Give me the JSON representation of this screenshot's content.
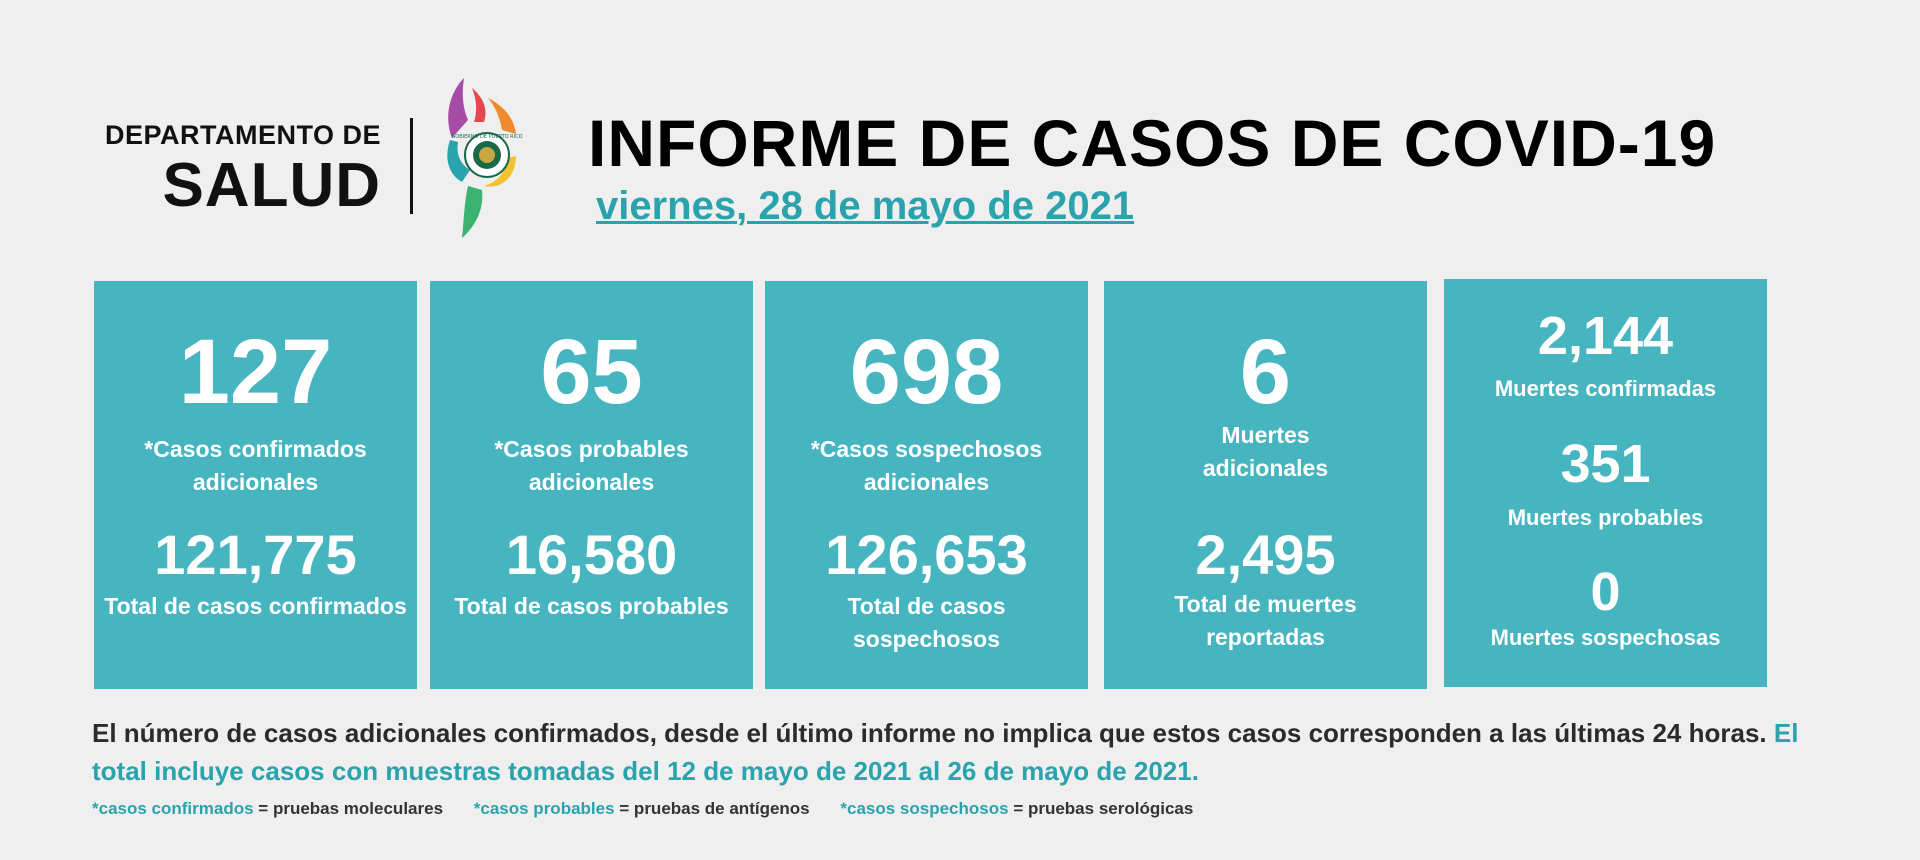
{
  "header": {
    "dept_line1": "DEPARTAMENTO DE",
    "dept_line2": "SALUD",
    "logo_icon": "puerto-rico-government-seal-logo",
    "logo_text": "GOBIERNO DE PUERTO RICO",
    "title": "INFORME DE CASOS DE COVID-19",
    "date": "viernes, 28 de mayo de 2021"
  },
  "colors": {
    "card": "#46b5c0",
    "accent": "#2aa3ad",
    "background": "#efefef"
  },
  "cards": [
    {
      "value": "127",
      "label": "*Casos confirmados adicionales",
      "total": "121,775",
      "total_label": "Total de casos confirmados"
    },
    {
      "value": "65",
      "label": "*Casos probables adicionales",
      "total": "16,580",
      "total_label": "Total de casos probables"
    },
    {
      "value": "698",
      "label": "*Casos sospechosos adicionales",
      "total": "126,653",
      "total_label": "Total de casos sospechosos"
    },
    {
      "value": "6",
      "label": "Muertes adicionales",
      "total": "2,495",
      "total_label": "Total de muertes reportadas"
    }
  ],
  "deaths": [
    {
      "value": "2,144",
      "label": "Muertes confirmadas"
    },
    {
      "value": "351",
      "label": "Muertes probables"
    },
    {
      "value": "0",
      "label": "Muertes sospechosas"
    }
  ],
  "note": {
    "text": "El número de casos adicionales confirmados, desde el último informe no implica que estos casos corresponden a las últimas 24 horas.",
    "highlight": "El total incluye casos con muestras tomadas del 12 de mayo de 2021 al 26 de mayo de 2021."
  },
  "legend": [
    {
      "key": "*casos confirmados",
      "value": "= pruebas moleculares"
    },
    {
      "key": "*casos probables",
      "value": "= pruebas de antígenos"
    },
    {
      "key": "*casos sospechosos",
      "value": "= pruebas serológicas"
    }
  ]
}
